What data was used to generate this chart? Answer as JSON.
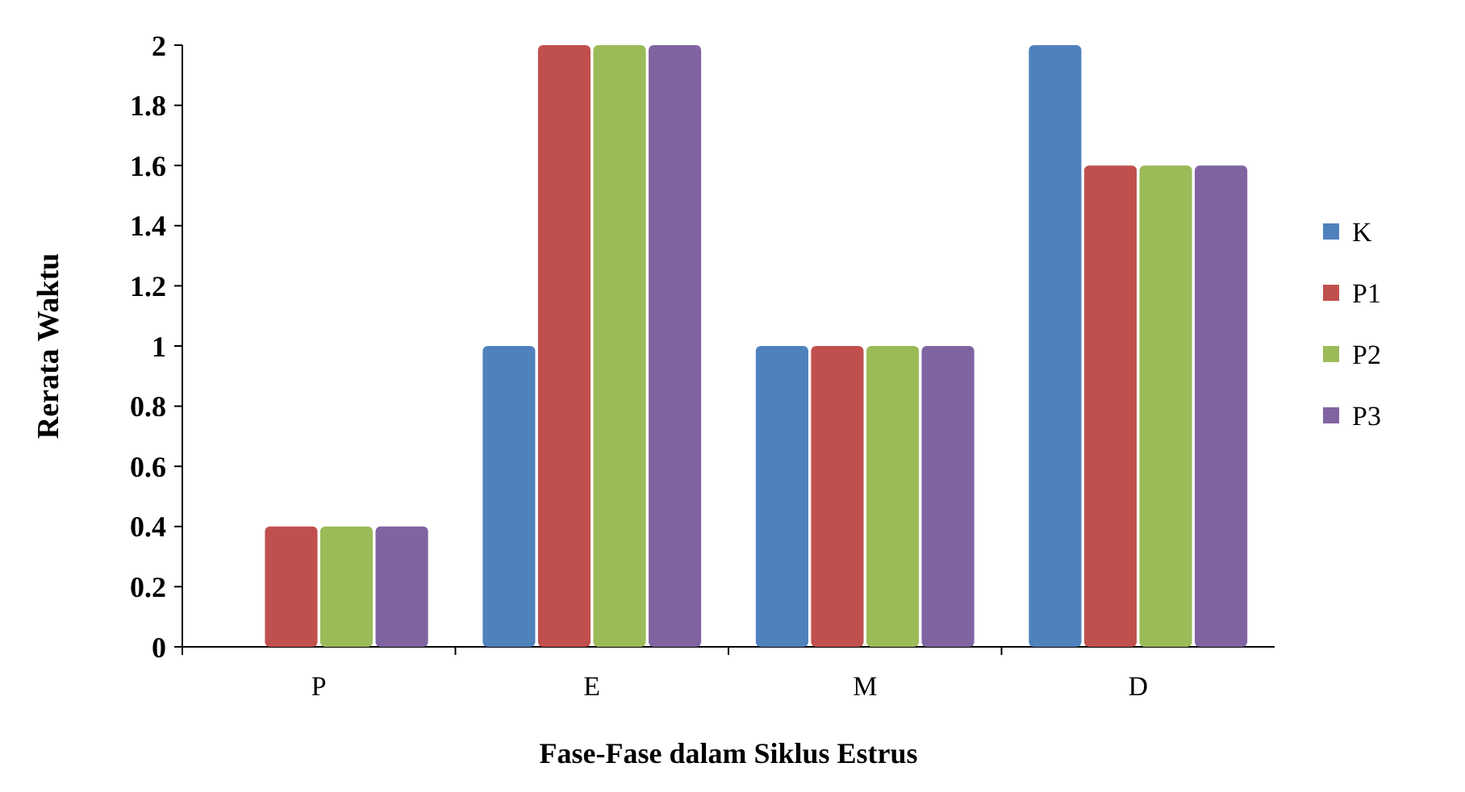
{
  "chart_data": {
    "type": "bar",
    "xlabel": "Fase-Fase dalam Siklus Estrus",
    "ylabel": "Rerata Waktu",
    "categories": [
      "P",
      "E",
      "M",
      "D"
    ],
    "series": [
      {
        "name": "K",
        "color": "#4f81bd",
        "values": [
          0,
          1,
          1,
          2
        ]
      },
      {
        "name": "P1",
        "color": "#c0504d",
        "values": [
          0.4,
          2,
          1,
          1.6
        ]
      },
      {
        "name": "P2",
        "color": "#9bbb59",
        "values": [
          0.4,
          2,
          1,
          1.6
        ]
      },
      {
        "name": "P3",
        "color": "#8064a2",
        "values": [
          0.4,
          2,
          1,
          1.6
        ]
      }
    ],
    "ylim": [
      0,
      2
    ],
    "yticks": [
      0,
      0.2,
      0.4,
      0.6,
      0.8,
      1,
      1.2,
      1.4,
      1.6,
      1.8,
      2
    ],
    "grid": false,
    "legend": "right"
  }
}
